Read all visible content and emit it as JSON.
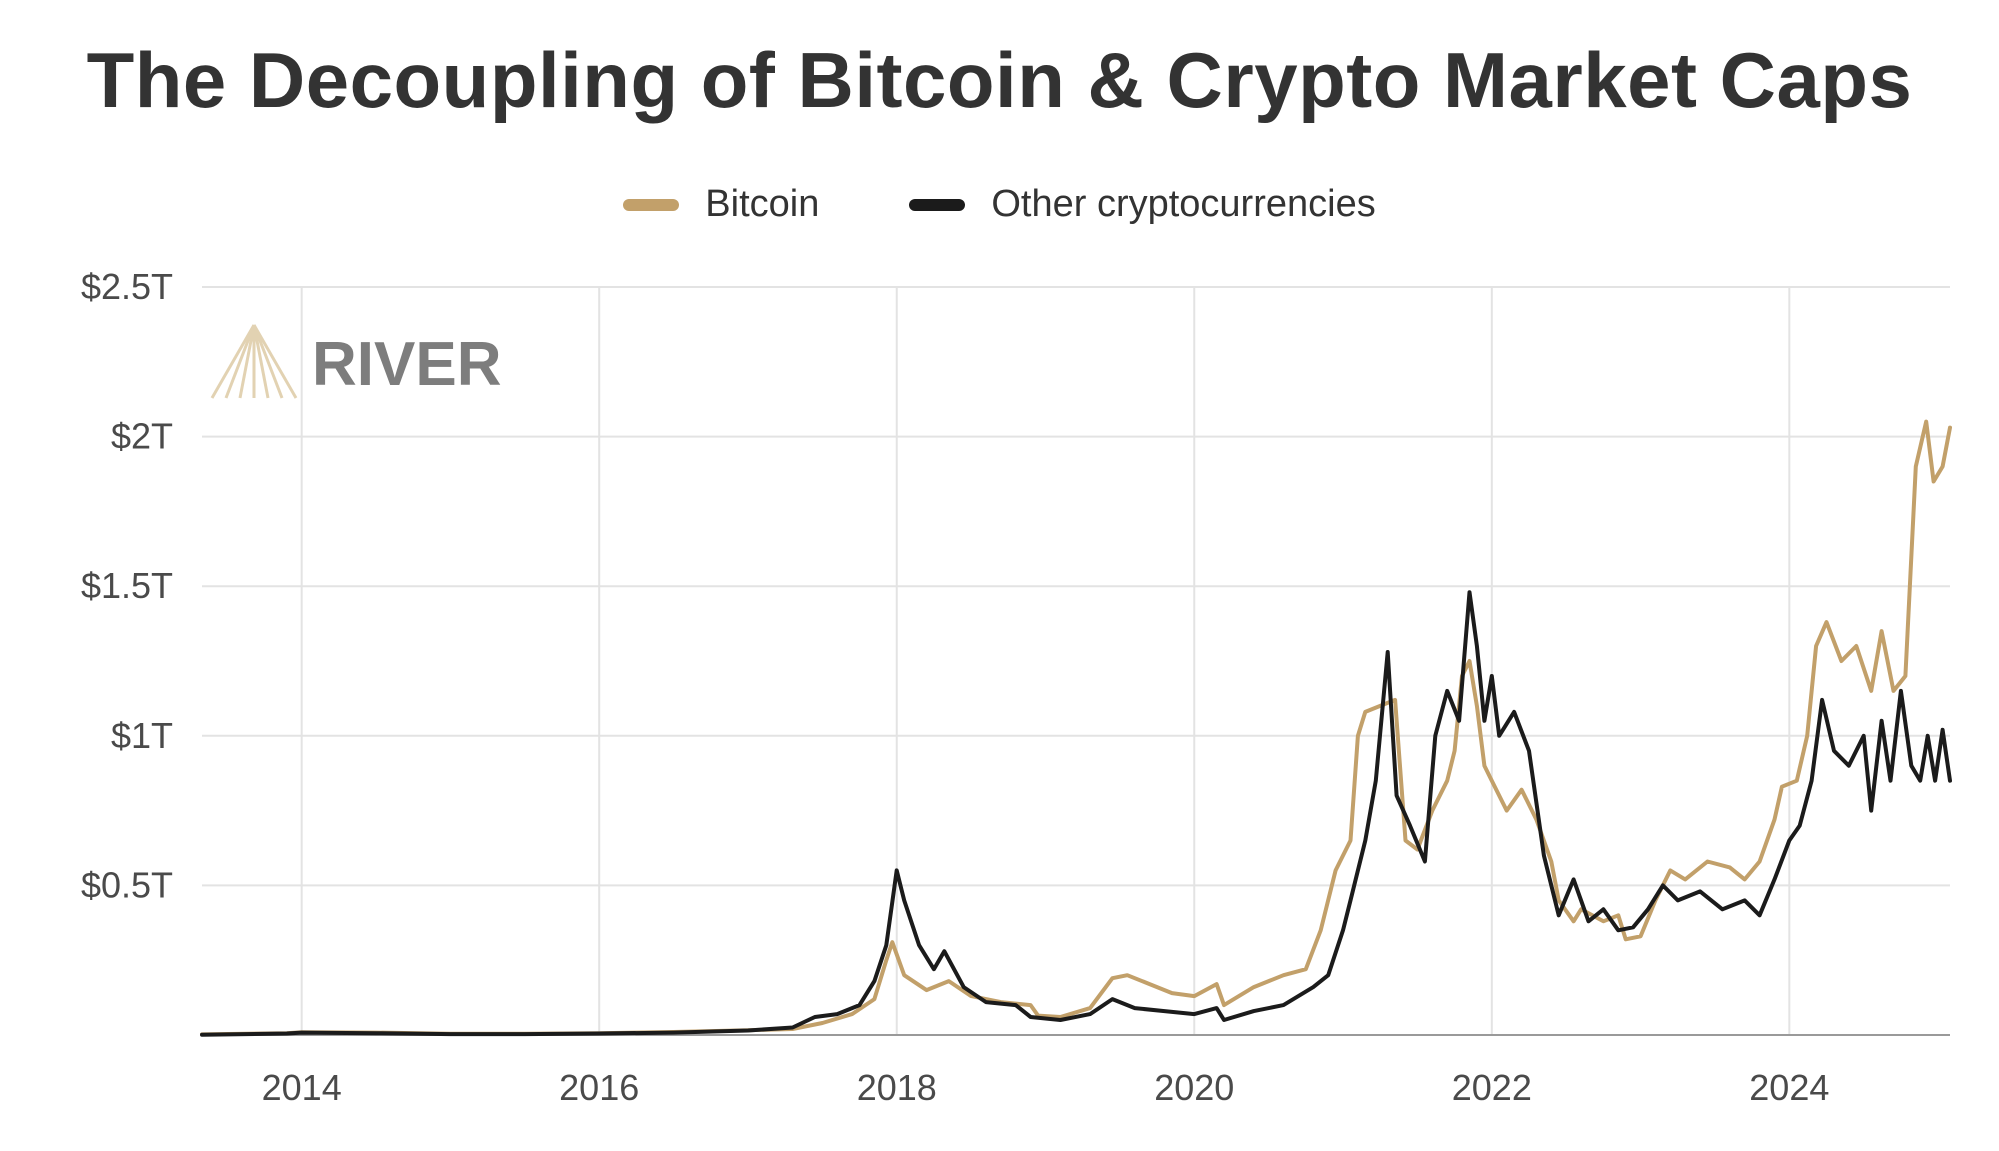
{
  "chart_data": {
    "type": "line",
    "title": "The Decoupling of Bitcoin & Crypto Market Caps",
    "xlabel": "",
    "ylabel": "",
    "x_ticks": [
      "2014",
      "2016",
      "2018",
      "2020",
      "2022",
      "2024"
    ],
    "y_ticks": [
      "$0.5T",
      "$1T",
      "$1.5T",
      "$2T",
      "$2.5T"
    ],
    "xlim": [
      2013.33,
      2025.08
    ],
    "ylim": [
      0,
      2.5
    ],
    "grid": true,
    "legend_position": "top-center",
    "watermark": "RIVER",
    "series": [
      {
        "name": "Bitcoin",
        "color": "#c2a06a",
        "unit": "trillion USD",
        "points": [
          [
            2013.33,
            0.002
          ],
          [
            2013.9,
            0.006
          ],
          [
            2014.0,
            0.009
          ],
          [
            2014.5,
            0.008
          ],
          [
            2015.0,
            0.004
          ],
          [
            2015.5,
            0.004
          ],
          [
            2016.0,
            0.006
          ],
          [
            2016.5,
            0.01
          ],
          [
            2017.0,
            0.016
          ],
          [
            2017.3,
            0.02
          ],
          [
            2017.5,
            0.04
          ],
          [
            2017.7,
            0.07
          ],
          [
            2017.85,
            0.12
          ],
          [
            2017.93,
            0.25
          ],
          [
            2017.97,
            0.31
          ],
          [
            2018.05,
            0.2
          ],
          [
            2018.2,
            0.15
          ],
          [
            2018.35,
            0.18
          ],
          [
            2018.5,
            0.13
          ],
          [
            2018.7,
            0.11
          ],
          [
            2018.9,
            0.1
          ],
          [
            2018.95,
            0.065
          ],
          [
            2019.1,
            0.06
          ],
          [
            2019.3,
            0.09
          ],
          [
            2019.45,
            0.19
          ],
          [
            2019.55,
            0.2
          ],
          [
            2019.7,
            0.17
          ],
          [
            2019.85,
            0.14
          ],
          [
            2020.0,
            0.13
          ],
          [
            2020.15,
            0.17
          ],
          [
            2020.2,
            0.1
          ],
          [
            2020.4,
            0.16
          ],
          [
            2020.6,
            0.2
          ],
          [
            2020.75,
            0.22
          ],
          [
            2020.85,
            0.35
          ],
          [
            2020.95,
            0.55
          ],
          [
            2021.05,
            0.65
          ],
          [
            2021.1,
            1.0
          ],
          [
            2021.15,
            1.08
          ],
          [
            2021.25,
            1.1
          ],
          [
            2021.35,
            1.12
          ],
          [
            2021.42,
            0.65
          ],
          [
            2021.5,
            0.62
          ],
          [
            2021.6,
            0.75
          ],
          [
            2021.7,
            0.85
          ],
          [
            2021.75,
            0.95
          ],
          [
            2021.8,
            1.2
          ],
          [
            2021.85,
            1.25
          ],
          [
            2021.9,
            1.1
          ],
          [
            2021.95,
            0.9
          ],
          [
            2022.0,
            0.85
          ],
          [
            2022.1,
            0.75
          ],
          [
            2022.2,
            0.82
          ],
          [
            2022.3,
            0.72
          ],
          [
            2022.4,
            0.58
          ],
          [
            2022.45,
            0.45
          ],
          [
            2022.55,
            0.38
          ],
          [
            2022.6,
            0.42
          ],
          [
            2022.75,
            0.38
          ],
          [
            2022.85,
            0.4
          ],
          [
            2022.9,
            0.32
          ],
          [
            2023.0,
            0.33
          ],
          [
            2023.1,
            0.45
          ],
          [
            2023.2,
            0.55
          ],
          [
            2023.3,
            0.52
          ],
          [
            2023.45,
            0.58
          ],
          [
            2023.6,
            0.56
          ],
          [
            2023.7,
            0.52
          ],
          [
            2023.8,
            0.58
          ],
          [
            2023.9,
            0.72
          ],
          [
            2023.95,
            0.83
          ],
          [
            2024.05,
            0.85
          ],
          [
            2024.12,
            1.0
          ],
          [
            2024.18,
            1.3
          ],
          [
            2024.25,
            1.38
          ],
          [
            2024.35,
            1.25
          ],
          [
            2024.45,
            1.3
          ],
          [
            2024.55,
            1.15
          ],
          [
            2024.62,
            1.35
          ],
          [
            2024.7,
            1.15
          ],
          [
            2024.78,
            1.2
          ],
          [
            2024.85,
            1.9
          ],
          [
            2024.92,
            2.05
          ],
          [
            2024.97,
            1.85
          ],
          [
            2025.03,
            1.9
          ],
          [
            2025.08,
            2.03
          ]
        ]
      },
      {
        "name": "Other cryptocurrencies",
        "color": "#1b1b1b",
        "unit": "trillion USD",
        "points": [
          [
            2013.33,
            0.001
          ],
          [
            2013.9,
            0.005
          ],
          [
            2014.0,
            0.008
          ],
          [
            2014.5,
            0.006
          ],
          [
            2015.0,
            0.003
          ],
          [
            2015.5,
            0.003
          ],
          [
            2016.0,
            0.005
          ],
          [
            2016.5,
            0.008
          ],
          [
            2017.0,
            0.015
          ],
          [
            2017.3,
            0.025
          ],
          [
            2017.45,
            0.06
          ],
          [
            2017.6,
            0.07
          ],
          [
            2017.75,
            0.1
          ],
          [
            2017.85,
            0.18
          ],
          [
            2017.93,
            0.3
          ],
          [
            2018.0,
            0.55
          ],
          [
            2018.05,
            0.45
          ],
          [
            2018.15,
            0.3
          ],
          [
            2018.25,
            0.22
          ],
          [
            2018.32,
            0.28
          ],
          [
            2018.45,
            0.16
          ],
          [
            2018.6,
            0.11
          ],
          [
            2018.8,
            0.1
          ],
          [
            2018.9,
            0.06
          ],
          [
            2019.1,
            0.05
          ],
          [
            2019.3,
            0.07
          ],
          [
            2019.45,
            0.12
          ],
          [
            2019.6,
            0.09
          ],
          [
            2019.8,
            0.08
          ],
          [
            2020.0,
            0.07
          ],
          [
            2020.15,
            0.09
          ],
          [
            2020.2,
            0.05
          ],
          [
            2020.4,
            0.08
          ],
          [
            2020.6,
            0.1
          ],
          [
            2020.8,
            0.16
          ],
          [
            2020.9,
            0.2
          ],
          [
            2021.0,
            0.35
          ],
          [
            2021.05,
            0.45
          ],
          [
            2021.15,
            0.65
          ],
          [
            2021.22,
            0.85
          ],
          [
            2021.3,
            1.28
          ],
          [
            2021.36,
            0.8
          ],
          [
            2021.45,
            0.7
          ],
          [
            2021.55,
            0.58
          ],
          [
            2021.62,
            1.0
          ],
          [
            2021.7,
            1.15
          ],
          [
            2021.78,
            1.05
          ],
          [
            2021.85,
            1.48
          ],
          [
            2021.9,
            1.3
          ],
          [
            2021.95,
            1.05
          ],
          [
            2022.0,
            1.2
          ],
          [
            2022.05,
            1.0
          ],
          [
            2022.15,
            1.08
          ],
          [
            2022.25,
            0.95
          ],
          [
            2022.35,
            0.6
          ],
          [
            2022.45,
            0.4
          ],
          [
            2022.55,
            0.52
          ],
          [
            2022.65,
            0.38
          ],
          [
            2022.75,
            0.42
          ],
          [
            2022.85,
            0.35
          ],
          [
            2022.95,
            0.36
          ],
          [
            2023.05,
            0.42
          ],
          [
            2023.15,
            0.5
          ],
          [
            2023.25,
            0.45
          ],
          [
            2023.4,
            0.48
          ],
          [
            2023.55,
            0.42
          ],
          [
            2023.7,
            0.45
          ],
          [
            2023.8,
            0.4
          ],
          [
            2023.9,
            0.52
          ],
          [
            2024.0,
            0.65
          ],
          [
            2024.07,
            0.7
          ],
          [
            2024.15,
            0.85
          ],
          [
            2024.22,
            1.12
          ],
          [
            2024.3,
            0.95
          ],
          [
            2024.4,
            0.9
          ],
          [
            2024.5,
            1.0
          ],
          [
            2024.55,
            0.75
          ],
          [
            2024.62,
            1.05
          ],
          [
            2024.68,
            0.85
          ],
          [
            2024.75,
            1.15
          ],
          [
            2024.82,
            0.9
          ],
          [
            2024.88,
            0.85
          ],
          [
            2024.93,
            1.0
          ],
          [
            2024.98,
            0.85
          ],
          [
            2025.03,
            1.02
          ],
          [
            2025.08,
            0.85
          ]
        ]
      }
    ]
  }
}
